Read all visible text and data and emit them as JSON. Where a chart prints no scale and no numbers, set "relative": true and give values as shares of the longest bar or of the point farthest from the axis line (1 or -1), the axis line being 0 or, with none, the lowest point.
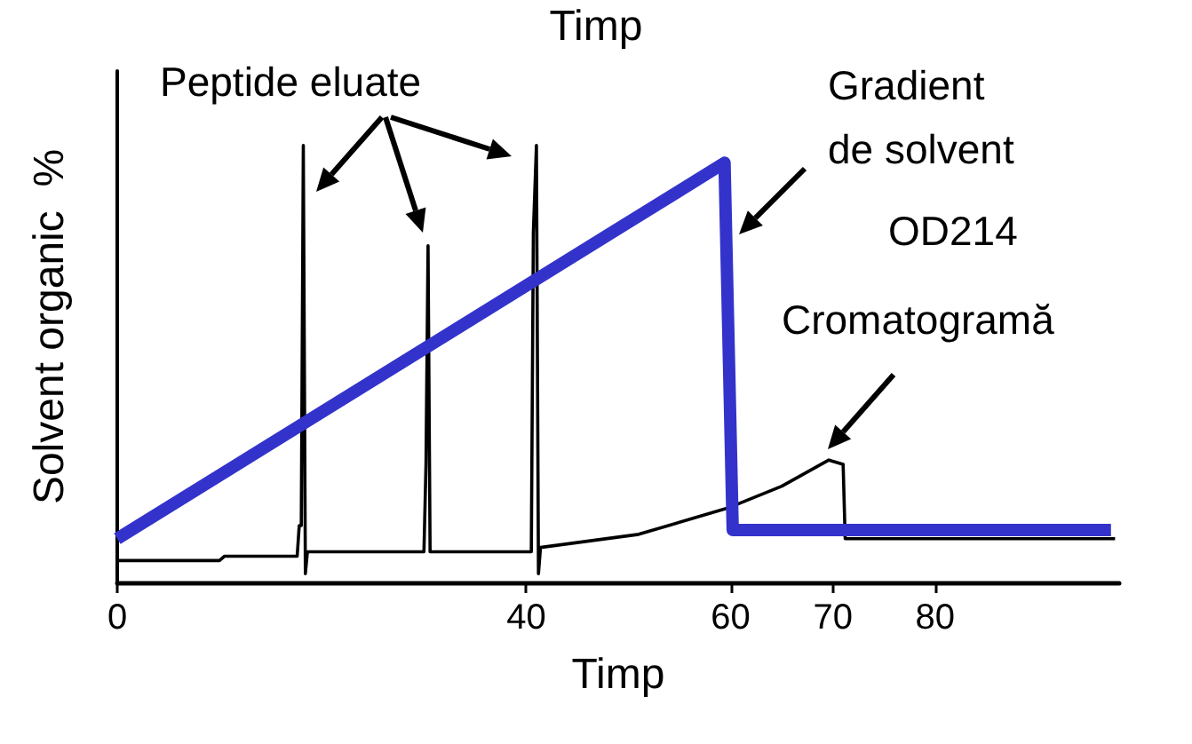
{
  "chart_data": {
    "type": "line",
    "title": "Timp",
    "xlabel": "Timp",
    "ylabel": "Solvent organic  %",
    "relative": true,
    "marker": "none",
    "grid": false,
    "xlim": [
      0,
      98
    ],
    "xticks": [
      0,
      40,
      60,
      70,
      80
    ],
    "annotations": [
      "Peptide eluate",
      "Gradient de solvent",
      "OD214",
      "Cromatogramă"
    ],
    "series": [
      {
        "color": "#3333cc",
        "x": [
          0,
          59.4,
          60.2,
          97.2
        ],
        "values": [
          0.1,
          0.96,
          0.12,
          0.12
        ]
      },
      {
        "color": "#000000",
        "x": [
          0,
          10,
          10.5,
          17.6,
          17.8,
          18,
          18.2,
          18.4,
          18.6,
          30,
          30.2,
          30.4,
          30.6,
          40.5,
          40.7,
          41,
          41.2,
          41.4,
          51,
          59.7,
          65,
          69.6,
          71,
          71.2,
          97.6
        ],
        "values": [
          0.05,
          0.05,
          0.06,
          0.06,
          0.13,
          0.13,
          1.0,
          0.02,
          0.07,
          0.07,
          0.27,
          0.77,
          0.07,
          0.07,
          0.8,
          1.0,
          0.02,
          0.08,
          0.11,
          0.17,
          0.22,
          0.28,
          0.27,
          0.1,
          0.1
        ]
      }
    ]
  }
}
